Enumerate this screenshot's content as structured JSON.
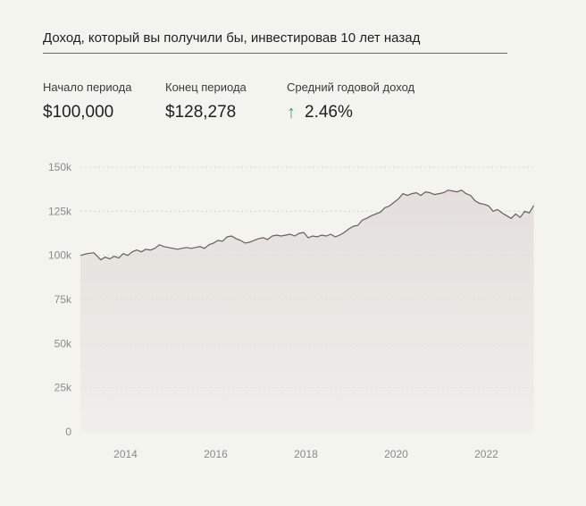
{
  "title": "Доход, который вы получили бы, инвестировав 10 лет назад",
  "stats": [
    {
      "label": "Начало периода",
      "value": "$100,000"
    },
    {
      "label": "Конец периода",
      "value": "$128,278"
    },
    {
      "label": "Средний годовой доход",
      "value": "2.46%",
      "trend_icon": "arrow-up-icon",
      "trend_color": "#3aa36a"
    }
  ],
  "chart_data": {
    "type": "area",
    "title": "",
    "xlabel": "",
    "ylabel": "",
    "ylim": [
      0,
      150000
    ],
    "xlim": [
      2013.0,
      2023.1
    ],
    "y_ticks": [
      0,
      25000,
      50000,
      75000,
      100000,
      125000,
      150000
    ],
    "y_tick_labels": [
      "0",
      "25k",
      "50k",
      "75k",
      "100k",
      "125k",
      "150k"
    ],
    "x_ticks": [
      2014,
      2016,
      2018,
      2020,
      2022
    ],
    "x_tick_labels": [
      "2014",
      "2016",
      "2018",
      "2020",
      "2022"
    ],
    "grid": "horizontal dotted",
    "line_color": "#6b5d5d",
    "fill_color": "#e4dfdc",
    "series": [
      {
        "x": [
          2013.0,
          2013.15,
          2013.3,
          2013.45,
          2013.55,
          2013.65,
          2013.75,
          2013.85,
          2013.95,
          2014.05,
          2014.15,
          2014.25,
          2014.35,
          2014.45,
          2014.55,
          2014.65,
          2014.75,
          2014.85,
          2014.95,
          2015.05,
          2015.15,
          2015.25,
          2015.35,
          2015.45,
          2015.55,
          2015.65,
          2015.75,
          2015.85,
          2015.95,
          2016.05,
          2016.15,
          2016.25,
          2016.35,
          2016.45,
          2016.55,
          2016.65,
          2016.75,
          2016.85,
          2016.95,
          2017.05,
          2017.15,
          2017.25,
          2017.35,
          2017.45,
          2017.55,
          2017.65,
          2017.75,
          2017.85,
          2017.95,
          2018.05,
          2018.15,
          2018.25,
          2018.35,
          2018.45,
          2018.55,
          2018.65,
          2018.75,
          2018.85,
          2018.95,
          2019.05,
          2019.15,
          2019.25,
          2019.35,
          2019.45,
          2019.55,
          2019.65,
          2019.75,
          2019.85,
          2019.95,
          2020.05,
          2020.15,
          2020.25,
          2020.35,
          2020.45,
          2020.55,
          2020.65,
          2020.75,
          2020.85,
          2020.95,
          2021.05,
          2021.15,
          2021.25,
          2021.35,
          2021.45,
          2021.55,
          2021.65,
          2021.75,
          2021.85,
          2021.95,
          2022.05,
          2022.15,
          2022.25,
          2022.35,
          2022.45,
          2022.55,
          2022.65,
          2022.75,
          2022.85,
          2022.95,
          2023.05
        ],
        "y": [
          100000,
          101000,
          101500,
          97500,
          99000,
          98000,
          99500,
          98500,
          101000,
          100000,
          102000,
          103000,
          102000,
          103500,
          103000,
          104000,
          106000,
          105000,
          104500,
          104000,
          103500,
          104000,
          104500,
          104000,
          104500,
          105000,
          104000,
          106000,
          107000,
          108500,
          108000,
          110500,
          111000,
          109500,
          108500,
          107000,
          107500,
          108500,
          109500,
          110000,
          109000,
          111000,
          111500,
          111000,
          111500,
          112000,
          111000,
          112500,
          113000,
          110000,
          111000,
          110500,
          111500,
          111000,
          112000,
          110500,
          111500,
          113000,
          115000,
          116500,
          117000,
          120000,
          121000,
          122500,
          123500,
          124500,
          127000,
          128000,
          130000,
          132000,
          135000,
          134000,
          135000,
          135500,
          134000,
          136000,
          135500,
          134500,
          135000,
          135500,
          137000,
          136500,
          136000,
          137000,
          135000,
          134000,
          131000,
          129500,
          129000,
          128000,
          125000,
          126000,
          124000,
          122500,
          121000,
          123500,
          121500,
          125000,
          124000,
          128278
        ]
      }
    ]
  }
}
